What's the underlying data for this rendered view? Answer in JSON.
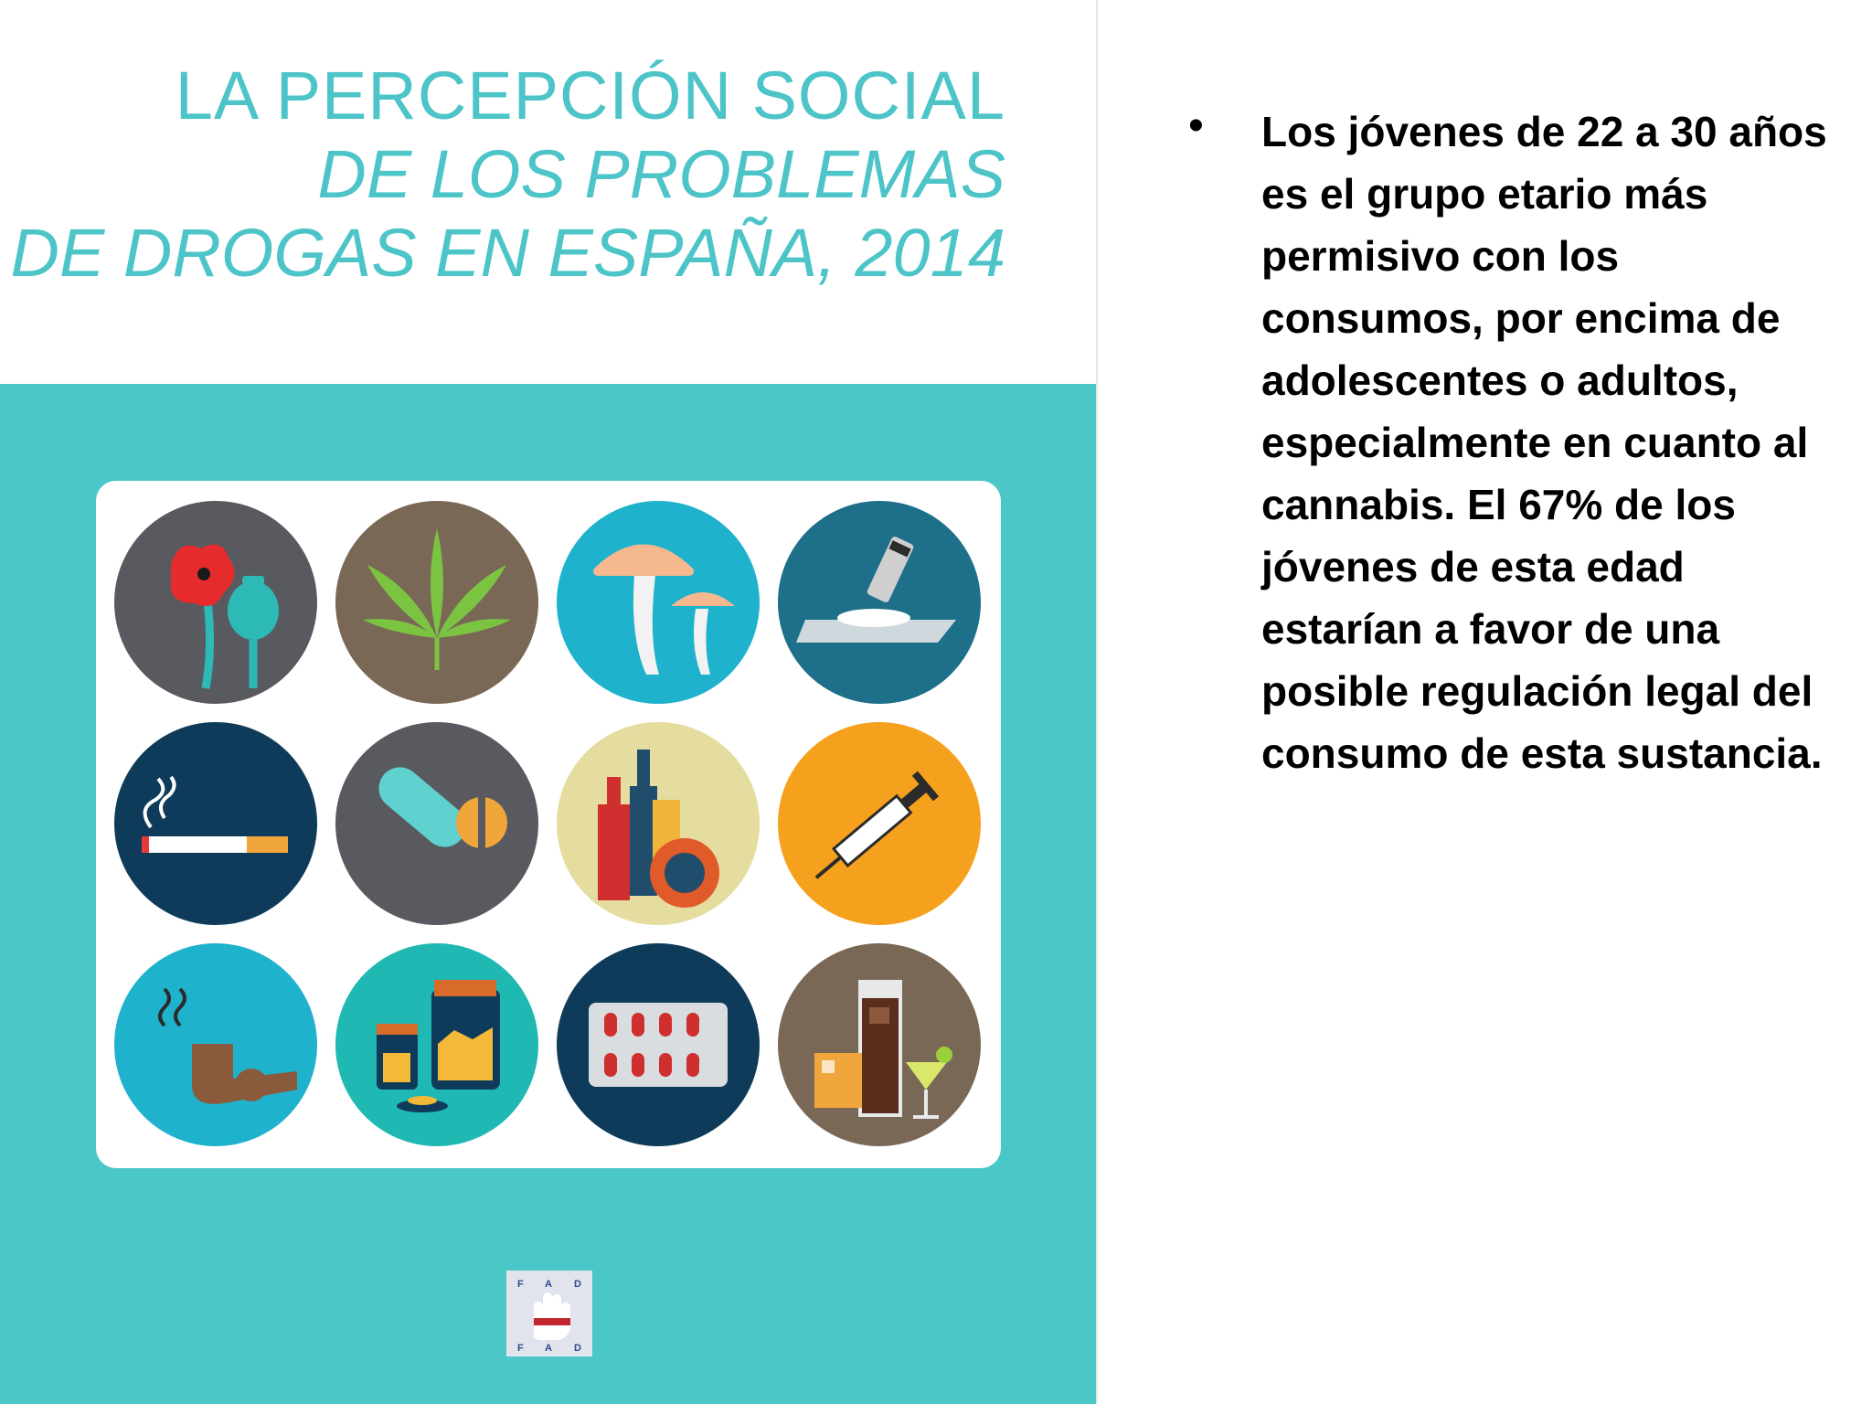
{
  "cover": {
    "title_line1": "LA PERCEPCIÓN SOCIAL",
    "title_line2": "DE LOS PROBLEMAS",
    "title_line3": "DE DROGAS EN ESPAÑA, 2014",
    "colors": {
      "accent": "#4cc4c8",
      "band": "#4cc7c8"
    },
    "icons": [
      {
        "name": "poppy-icon"
      },
      {
        "name": "cannabis-leaf-icon"
      },
      {
        "name": "mushrooms-icon"
      },
      {
        "name": "cocaine-icon"
      },
      {
        "name": "cigarette-icon"
      },
      {
        "name": "pills-icon"
      },
      {
        "name": "alcohol-bottles-icon"
      },
      {
        "name": "syringe-icon"
      },
      {
        "name": "pipe-icon"
      },
      {
        "name": "jars-icon"
      },
      {
        "name": "blister-pack-icon"
      },
      {
        "name": "drinks-icon"
      }
    ],
    "logo_letters": "FAD"
  },
  "slide": {
    "bullet_symbol": "•",
    "bullet_text": "Los jóvenes de 22 a 30 años es el grupo etario más permisivo con los consumos, por encima de adolescentes o adultos, especialmente en cuanto al cannabis. El 67% de los jóvenes de esta edad estarían a favor de una posible regulación legal del consumo de esta sustancia."
  }
}
